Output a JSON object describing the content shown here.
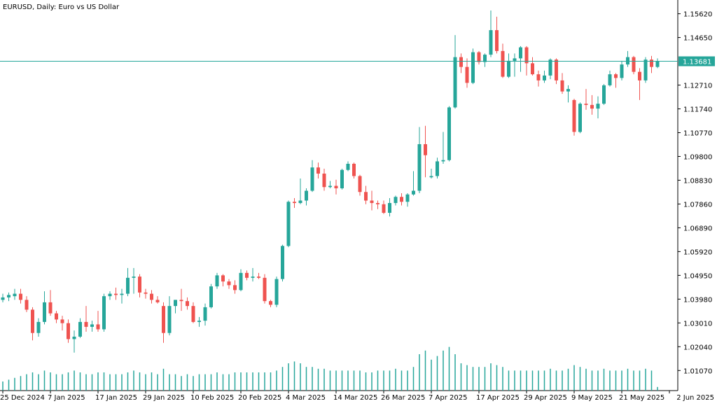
{
  "window": {
    "symbol": "EURUSD",
    "timeframe": "Daily:",
    "description": "Euro vs US Dollar"
  },
  "price_tag": "1.13681",
  "colors": {
    "up": "#26a69a",
    "down": "#ef5350",
    "background": "#ffffff",
    "axis": "#000000",
    "price_line": "#26a69a",
    "volume": "#26a69a"
  },
  "chart_data": {
    "type": "candlestick",
    "title": "EURUSD, Daily:  Euro vs US Dollar",
    "current_price": 1.13681,
    "ylim": [
      1.0025,
      1.1618
    ],
    "y_ticks": [
      {
        "value": 1.1562,
        "label": "1.15620"
      },
      {
        "value": 1.1465,
        "label": "1.14650"
      },
      {
        "value": 1.13681,
        "label": "1.13681"
      },
      {
        "value": 1.1271,
        "label": "1.12710"
      },
      {
        "value": 1.1174,
        "label": "1.11740"
      },
      {
        "value": 1.1077,
        "label": "1.10770"
      },
      {
        "value": 1.098,
        "label": "1.09800"
      },
      {
        "value": 1.0883,
        "label": "1.08830"
      },
      {
        "value": 1.0786,
        "label": "1.07860"
      },
      {
        "value": 1.0689,
        "label": "1.06890"
      },
      {
        "value": 1.0592,
        "label": "1.05920"
      },
      {
        "value": 1.0495,
        "label": "1.04950"
      },
      {
        "value": 1.0398,
        "label": "1.03980"
      },
      {
        "value": 1.0301,
        "label": "1.03010"
      },
      {
        "value": 1.0204,
        "label": "1.02040"
      },
      {
        "value": 1.0107,
        "label": "1.01070"
      }
    ],
    "x_labels": [
      {
        "index": 0,
        "label": "25 Dec 2024"
      },
      {
        "index": 8,
        "label": "7 Jan 2025"
      },
      {
        "index": 16,
        "label": "17 Jan 2025"
      },
      {
        "index": 24,
        "label": "29 Jan 2025"
      },
      {
        "index": 32,
        "label": "10 Feb 2025"
      },
      {
        "index": 40,
        "label": "20 Feb 2025"
      },
      {
        "index": 48,
        "label": "4 Mar 2025"
      },
      {
        "index": 56,
        "label": "14 Mar 2025"
      },
      {
        "index": 64,
        "label": "26 Mar 2025"
      },
      {
        "index": 72,
        "label": "7 Apr 2025"
      },
      {
        "index": 80,
        "label": "17 Apr 2025"
      },
      {
        "index": 88,
        "label": "29 Apr 2025"
      },
      {
        "index": 96,
        "label": "9 May 2025"
      },
      {
        "index": 104,
        "label": "21 May 2025"
      },
      {
        "index": 112,
        "label": "2 Jun 2025"
      }
    ],
    "candles": [
      {
        "o": 1.0395,
        "h": 1.042,
        "l": 1.0385,
        "c": 1.0405,
        "v": 0.25
      },
      {
        "o": 1.0405,
        "h": 1.0425,
        "l": 1.039,
        "c": 1.0415,
        "v": 0.3
      },
      {
        "o": 1.041,
        "h": 1.044,
        "l": 1.0395,
        "c": 1.042,
        "v": 0.35
      },
      {
        "o": 1.042,
        "h": 1.044,
        "l": 1.038,
        "c": 1.0395,
        "v": 0.4
      },
      {
        "o": 1.0395,
        "h": 1.041,
        "l": 1.0345,
        "c": 1.0355,
        "v": 0.45
      },
      {
        "o": 1.0355,
        "h": 1.0365,
        "l": 1.023,
        "c": 1.026,
        "v": 0.5
      },
      {
        "o": 1.026,
        "h": 1.032,
        "l": 1.0245,
        "c": 1.0305,
        "v": 0.45
      },
      {
        "o": 1.0305,
        "h": 1.043,
        "l": 1.0295,
        "c": 1.0385,
        "v": 0.55
      },
      {
        "o": 1.0385,
        "h": 1.0435,
        "l": 1.033,
        "c": 1.034,
        "v": 0.5
      },
      {
        "o": 1.034,
        "h": 1.035,
        "l": 1.03,
        "c": 1.0315,
        "v": 0.45
      },
      {
        "o": 1.0315,
        "h": 1.033,
        "l": 1.027,
        "c": 1.03,
        "v": 0.45
      },
      {
        "o": 1.03,
        "h": 1.0315,
        "l": 1.022,
        "c": 1.0235,
        "v": 0.5
      },
      {
        "o": 1.0235,
        "h": 1.027,
        "l": 1.018,
        "c": 1.0245,
        "v": 0.55
      },
      {
        "o": 1.0245,
        "h": 1.032,
        "l": 1.024,
        "c": 1.0305,
        "v": 0.5
      },
      {
        "o": 1.0305,
        "h": 1.037,
        "l": 1.0265,
        "c": 1.0285,
        "v": 0.45
      },
      {
        "o": 1.0285,
        "h": 1.031,
        "l": 1.0265,
        "c": 1.0295,
        "v": 0.45
      },
      {
        "o": 1.0295,
        "h": 1.035,
        "l": 1.0265,
        "c": 1.0275,
        "v": 0.5
      },
      {
        "o": 1.0275,
        "h": 1.042,
        "l": 1.0265,
        "c": 1.041,
        "v": 0.5
      },
      {
        "o": 1.041,
        "h": 1.043,
        "l": 1.0395,
        "c": 1.042,
        "v": 0.45
      },
      {
        "o": 1.042,
        "h": 1.0445,
        "l": 1.0395,
        "c": 1.0415,
        "v": 0.45
      },
      {
        "o": 1.0415,
        "h": 1.044,
        "l": 1.038,
        "c": 1.042,
        "v": 0.45
      },
      {
        "o": 1.042,
        "h": 1.0525,
        "l": 1.041,
        "c": 1.0485,
        "v": 0.5
      },
      {
        "o": 1.0485,
        "h": 1.0525,
        "l": 1.042,
        "c": 1.049,
        "v": 0.55
      },
      {
        "o": 1.049,
        "h": 1.05,
        "l": 1.0405,
        "c": 1.0425,
        "v": 0.5
      },
      {
        "o": 1.0425,
        "h": 1.044,
        "l": 1.04,
        "c": 1.042,
        "v": 0.45
      },
      {
        "o": 1.042,
        "h": 1.0435,
        "l": 1.038,
        "c": 1.0395,
        "v": 0.5
      },
      {
        "o": 1.0395,
        "h": 1.041,
        "l": 1.038,
        "c": 1.0385,
        "v": 0.45
      },
      {
        "o": 1.037,
        "h": 1.0385,
        "l": 1.022,
        "c": 1.026,
        "v": 0.6
      },
      {
        "o": 1.026,
        "h": 1.041,
        "l": 1.025,
        "c": 1.037,
        "v": 0.45
      },
      {
        "o": 1.037,
        "h": 1.0395,
        "l": 1.034,
        "c": 1.0395,
        "v": 0.45
      },
      {
        "o": 1.0395,
        "h": 1.044,
        "l": 1.035,
        "c": 1.039,
        "v": 0.4
      },
      {
        "o": 1.039,
        "h": 1.0405,
        "l": 1.0355,
        "c": 1.037,
        "v": 0.45
      },
      {
        "o": 1.037,
        "h": 1.0385,
        "l": 1.03,
        "c": 1.0305,
        "v": 0.4
      },
      {
        "o": 1.0305,
        "h": 1.0325,
        "l": 1.0285,
        "c": 1.031,
        "v": 0.45
      },
      {
        "o": 1.031,
        "h": 1.038,
        "l": 1.029,
        "c": 1.0365,
        "v": 0.45
      },
      {
        "o": 1.0365,
        "h": 1.046,
        "l": 1.036,
        "c": 1.045,
        "v": 0.45
      },
      {
        "o": 1.045,
        "h": 1.0505,
        "l": 1.044,
        "c": 1.0495,
        "v": 0.5
      },
      {
        "o": 1.0495,
        "h": 1.05,
        "l": 1.045,
        "c": 1.047,
        "v": 0.45
      },
      {
        "o": 1.047,
        "h": 1.048,
        "l": 1.044,
        "c": 1.0455,
        "v": 0.45
      },
      {
        "o": 1.0455,
        "h": 1.0475,
        "l": 1.042,
        "c": 1.0435,
        "v": 0.5
      },
      {
        "o": 1.0435,
        "h": 1.052,
        "l": 1.043,
        "c": 1.0505,
        "v": 0.5
      },
      {
        "o": 1.0505,
        "h": 1.0515,
        "l": 1.0475,
        "c": 1.0485,
        "v": 0.5
      },
      {
        "o": 1.0485,
        "h": 1.0525,
        "l": 1.047,
        "c": 1.049,
        "v": 0.5
      },
      {
        "o": 1.049,
        "h": 1.0505,
        "l": 1.048,
        "c": 1.0485,
        "v": 0.5
      },
      {
        "o": 1.0485,
        "h": 1.05,
        "l": 1.038,
        "c": 1.039,
        "v": 0.5
      },
      {
        "o": 1.039,
        "h": 1.0395,
        "l": 1.0365,
        "c": 1.0375,
        "v": 0.5
      },
      {
        "o": 1.0375,
        "h": 1.049,
        "l": 1.0365,
        "c": 1.048,
        "v": 0.55
      },
      {
        "o": 1.048,
        "h": 1.062,
        "l": 1.047,
        "c": 1.0615,
        "v": 0.65
      },
      {
        "o": 1.0615,
        "h": 1.08,
        "l": 1.061,
        "c": 1.0795,
        "v": 0.75
      },
      {
        "o": 1.0795,
        "h": 1.081,
        "l": 1.077,
        "c": 1.079,
        "v": 0.8
      },
      {
        "o": 1.079,
        "h": 1.089,
        "l": 1.0785,
        "c": 1.08,
        "v": 0.75
      },
      {
        "o": 1.08,
        "h": 1.085,
        "l": 1.078,
        "c": 1.084,
        "v": 0.65
      },
      {
        "o": 1.084,
        "h": 1.0965,
        "l": 1.0835,
        "c": 1.0935,
        "v": 0.65
      },
      {
        "o": 1.0935,
        "h": 1.0955,
        "l": 1.089,
        "c": 1.091,
        "v": 0.6
      },
      {
        "o": 1.091,
        "h": 1.093,
        "l": 1.084,
        "c": 1.0855,
        "v": 0.6
      },
      {
        "o": 1.0855,
        "h": 1.088,
        "l": 1.085,
        "c": 1.086,
        "v": 0.55
      },
      {
        "o": 1.086,
        "h": 1.0885,
        "l": 1.0825,
        "c": 1.085,
        "v": 0.55
      },
      {
        "o": 1.085,
        "h": 1.093,
        "l": 1.0845,
        "c": 1.0925,
        "v": 0.55
      },
      {
        "o": 1.0925,
        "h": 1.096,
        "l": 1.092,
        "c": 1.095,
        "v": 0.55
      },
      {
        "o": 1.095,
        "h": 1.0955,
        "l": 1.089,
        "c": 1.09,
        "v": 0.55
      },
      {
        "o": 1.09,
        "h": 1.0905,
        "l": 1.082,
        "c": 1.0835,
        "v": 0.55
      },
      {
        "o": 1.0835,
        "h": 1.086,
        "l": 1.0785,
        "c": 1.08,
        "v": 0.5
      },
      {
        "o": 1.08,
        "h": 1.084,
        "l": 1.076,
        "c": 1.079,
        "v": 0.5
      },
      {
        "o": 1.079,
        "h": 1.08,
        "l": 1.0765,
        "c": 1.0785,
        "v": 0.55
      },
      {
        "o": 1.0785,
        "h": 1.08,
        "l": 1.0745,
        "c": 1.075,
        "v": 0.55
      },
      {
        "o": 1.075,
        "h": 1.081,
        "l": 1.0735,
        "c": 1.079,
        "v": 0.55
      },
      {
        "o": 1.079,
        "h": 1.082,
        "l": 1.078,
        "c": 1.0815,
        "v": 0.6
      },
      {
        "o": 1.0815,
        "h": 1.083,
        "l": 1.078,
        "c": 1.0795,
        "v": 0.55
      },
      {
        "o": 1.0795,
        "h": 1.083,
        "l": 1.0775,
        "c": 1.0825,
        "v": 0.55
      },
      {
        "o": 1.0825,
        "h": 1.092,
        "l": 1.082,
        "c": 1.084,
        "v": 0.65
      },
      {
        "o": 1.084,
        "h": 1.11,
        "l": 1.083,
        "c": 1.103,
        "v": 1.0
      },
      {
        "o": 1.103,
        "h": 1.1105,
        "l": 1.0895,
        "c": 1.0985,
        "v": 1.1
      },
      {
        "o": 1.0895,
        "h": 1.093,
        "l": 1.089,
        "c": 1.09,
        "v": 0.85
      },
      {
        "o": 1.09,
        "h": 1.0975,
        "l": 1.089,
        "c": 1.096,
        "v": 0.95
      },
      {
        "o": 1.096,
        "h": 1.108,
        "l": 1.095,
        "c": 1.0965,
        "v": 1.1
      },
      {
        "o": 1.0965,
        "h": 1.1185,
        "l": 1.096,
        "c": 1.118,
        "v": 1.2
      },
      {
        "o": 1.118,
        "h": 1.1475,
        "l": 1.1175,
        "c": 1.1385,
        "v": 1.0
      },
      {
        "o": 1.1385,
        "h": 1.14,
        "l": 1.132,
        "c": 1.1345,
        "v": 0.75
      },
      {
        "o": 1.1345,
        "h": 1.138,
        "l": 1.126,
        "c": 1.128,
        "v": 0.7
      },
      {
        "o": 1.128,
        "h": 1.142,
        "l": 1.1275,
        "c": 1.1405,
        "v": 0.65
      },
      {
        "o": 1.1405,
        "h": 1.141,
        "l": 1.1355,
        "c": 1.1365,
        "v": 0.65
      },
      {
        "o": 1.1365,
        "h": 1.14,
        "l": 1.1345,
        "c": 1.1395,
        "v": 0.65
      },
      {
        "o": 1.1395,
        "h": 1.1575,
        "l": 1.1385,
        "c": 1.1495,
        "v": 0.75
      },
      {
        "o": 1.1495,
        "h": 1.155,
        "l": 1.14,
        "c": 1.141,
        "v": 0.7
      },
      {
        "o": 1.141,
        "h": 1.144,
        "l": 1.13,
        "c": 1.1305,
        "v": 0.65
      },
      {
        "o": 1.1305,
        "h": 1.14,
        "l": 1.13,
        "c": 1.137,
        "v": 0.55
      },
      {
        "o": 1.137,
        "h": 1.14,
        "l": 1.1305,
        "c": 1.138,
        "v": 0.55
      },
      {
        "o": 1.138,
        "h": 1.143,
        "l": 1.1325,
        "c": 1.1425,
        "v": 0.55
      },
      {
        "o": 1.1425,
        "h": 1.143,
        "l": 1.131,
        "c": 1.136,
        "v": 0.55
      },
      {
        "o": 1.136,
        "h": 1.1385,
        "l": 1.131,
        "c": 1.1315,
        "v": 0.55
      },
      {
        "o": 1.1315,
        "h": 1.133,
        "l": 1.1265,
        "c": 1.129,
        "v": 0.55
      },
      {
        "o": 1.129,
        "h": 1.133,
        "l": 1.128,
        "c": 1.131,
        "v": 0.55
      },
      {
        "o": 1.131,
        "h": 1.138,
        "l": 1.1295,
        "c": 1.1375,
        "v": 0.6
      },
      {
        "o": 1.1375,
        "h": 1.138,
        "l": 1.1275,
        "c": 1.129,
        "v": 0.55
      },
      {
        "o": 1.129,
        "h": 1.132,
        "l": 1.1235,
        "c": 1.1245,
        "v": 0.55
      },
      {
        "o": 1.1245,
        "h": 1.127,
        "l": 1.12,
        "c": 1.1255,
        "v": 0.6
      },
      {
        "o": 1.121,
        "h": 1.1215,
        "l": 1.1065,
        "c": 1.108,
        "v": 0.7
      },
      {
        "o": 1.108,
        "h": 1.12,
        "l": 1.1075,
        "c": 1.1195,
        "v": 0.65
      },
      {
        "o": 1.1195,
        "h": 1.1255,
        "l": 1.117,
        "c": 1.119,
        "v": 0.6
      },
      {
        "o": 1.119,
        "h": 1.123,
        "l": 1.115,
        "c": 1.1175,
        "v": 0.55
      },
      {
        "o": 1.1175,
        "h": 1.1225,
        "l": 1.1135,
        "c": 1.1195,
        "v": 0.55
      },
      {
        "o": 1.1195,
        "h": 1.1275,
        "l": 1.119,
        "c": 1.127,
        "v": 0.6
      },
      {
        "o": 1.127,
        "h": 1.133,
        "l": 1.1265,
        "c": 1.1315,
        "v": 0.55
      },
      {
        "o": 1.1315,
        "h": 1.132,
        "l": 1.126,
        "c": 1.13,
        "v": 0.55
      },
      {
        "o": 1.13,
        "h": 1.137,
        "l": 1.129,
        "c": 1.1355,
        "v": 0.55
      },
      {
        "o": 1.1355,
        "h": 1.141,
        "l": 1.1345,
        "c": 1.1385,
        "v": 0.6
      },
      {
        "o": 1.1385,
        "h": 1.139,
        "l": 1.1315,
        "c": 1.1325,
        "v": 0.55
      },
      {
        "o": 1.1325,
        "h": 1.134,
        "l": 1.121,
        "c": 1.129,
        "v": 0.55
      },
      {
        "o": 1.129,
        "h": 1.1385,
        "l": 1.128,
        "c": 1.1375,
        "v": 0.6
      },
      {
        "o": 1.1375,
        "h": 1.139,
        "l": 1.132,
        "c": 1.1345,
        "v": 0.55
      },
      {
        "o": 1.1345,
        "h": 1.138,
        "l": 1.134,
        "c": 1.1368,
        "v": 0.1
      }
    ]
  }
}
